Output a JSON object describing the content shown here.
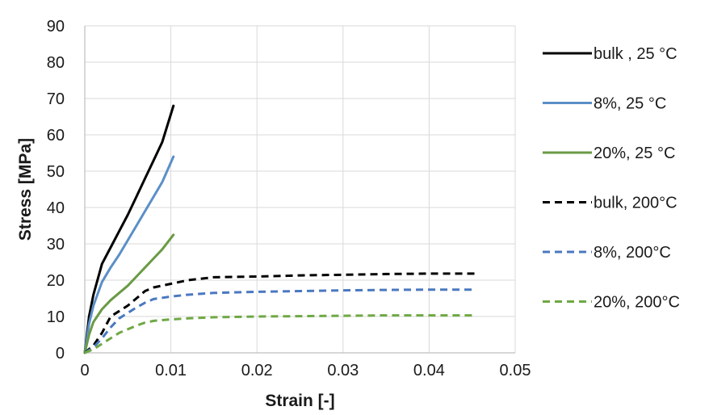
{
  "chart_data": {
    "type": "line",
    "xlabel": "Strain [-]",
    "ylabel": "Stress [MPa]",
    "xlim": [
      0,
      0.05
    ],
    "ylim": [
      0,
      90
    ],
    "x_ticks": [
      "0",
      "0.01",
      "0.02",
      "0.03",
      "0.04",
      "0.05"
    ],
    "y_ticks": [
      "0",
      "10",
      "20",
      "30",
      "40",
      "50",
      "60",
      "70",
      "80",
      "90"
    ],
    "grid": true,
    "legend_position": "right",
    "series": [
      {
        "name": "bulk , 25 °C",
        "color": "#000000",
        "style": "solid",
        "x": [
          0,
          0.0005,
          0.001,
          0.002,
          0.003,
          0.004,
          0.005,
          0.006,
          0.007,
          0.008,
          0.009,
          0.0103
        ],
        "y": [
          0,
          10,
          16,
          24.5,
          29,
          33.5,
          38,
          43,
          48,
          53,
          58,
          68
        ]
      },
      {
        "name": "8%, 25 °C",
        "color": "#5b8fc7",
        "style": "solid",
        "x": [
          0,
          0.0005,
          0.001,
          0.002,
          0.003,
          0.004,
          0.005,
          0.006,
          0.007,
          0.008,
          0.009,
          0.0103
        ],
        "y": [
          0,
          8,
          13,
          19.5,
          23.5,
          27,
          31,
          35,
          39,
          43,
          47,
          54
        ]
      },
      {
        "name": "20%, 25 °C",
        "color": "#6a9a45",
        "style": "solid",
        "x": [
          0,
          0.0005,
          0.001,
          0.002,
          0.003,
          0.004,
          0.005,
          0.006,
          0.007,
          0.008,
          0.009,
          0.0103
        ],
        "y": [
          0,
          5,
          8.5,
          12,
          14.5,
          16.5,
          18.5,
          21,
          23.5,
          26,
          28.5,
          32.5
        ]
      },
      {
        "name": "bulk, 200°C",
        "color": "#000000",
        "style": "dashed",
        "x": [
          0,
          0.001,
          0.002,
          0.003,
          0.004,
          0.005,
          0.006,
          0.007,
          0.008,
          0.01,
          0.012,
          0.015,
          0.02,
          0.025,
          0.03,
          0.035,
          0.04,
          0.0455
        ],
        "y": [
          0,
          2,
          5.5,
          10,
          11.5,
          13,
          15,
          17,
          18,
          19,
          20,
          20.8,
          21,
          21.3,
          21.5,
          21.7,
          21.8,
          21.8
        ]
      },
      {
        "name": "8%, 200°C",
        "color": "#4a78c0",
        "style": "dashed",
        "x": [
          0,
          0.001,
          0.002,
          0.003,
          0.004,
          0.005,
          0.006,
          0.007,
          0.008,
          0.01,
          0.012,
          0.015,
          0.02,
          0.025,
          0.03,
          0.035,
          0.04,
          0.045
        ],
        "y": [
          0,
          1.5,
          4,
          7,
          9.5,
          11,
          12.5,
          13.8,
          14.8,
          15.5,
          16,
          16.5,
          16.8,
          17,
          17.2,
          17.3,
          17.4,
          17.4
        ]
      },
      {
        "name": "20%, 200°C",
        "color": "#6fa844",
        "style": "dashed",
        "x": [
          0,
          0.001,
          0.002,
          0.003,
          0.004,
          0.005,
          0.006,
          0.007,
          0.008,
          0.01,
          0.012,
          0.015,
          0.02,
          0.025,
          0.03,
          0.035,
          0.04,
          0.045
        ],
        "y": [
          0,
          1,
          2.5,
          4,
          5.5,
          6.5,
          7.5,
          8.3,
          8.8,
          9.2,
          9.5,
          9.8,
          10,
          10.1,
          10.2,
          10.3,
          10.3,
          10.3
        ]
      }
    ]
  }
}
